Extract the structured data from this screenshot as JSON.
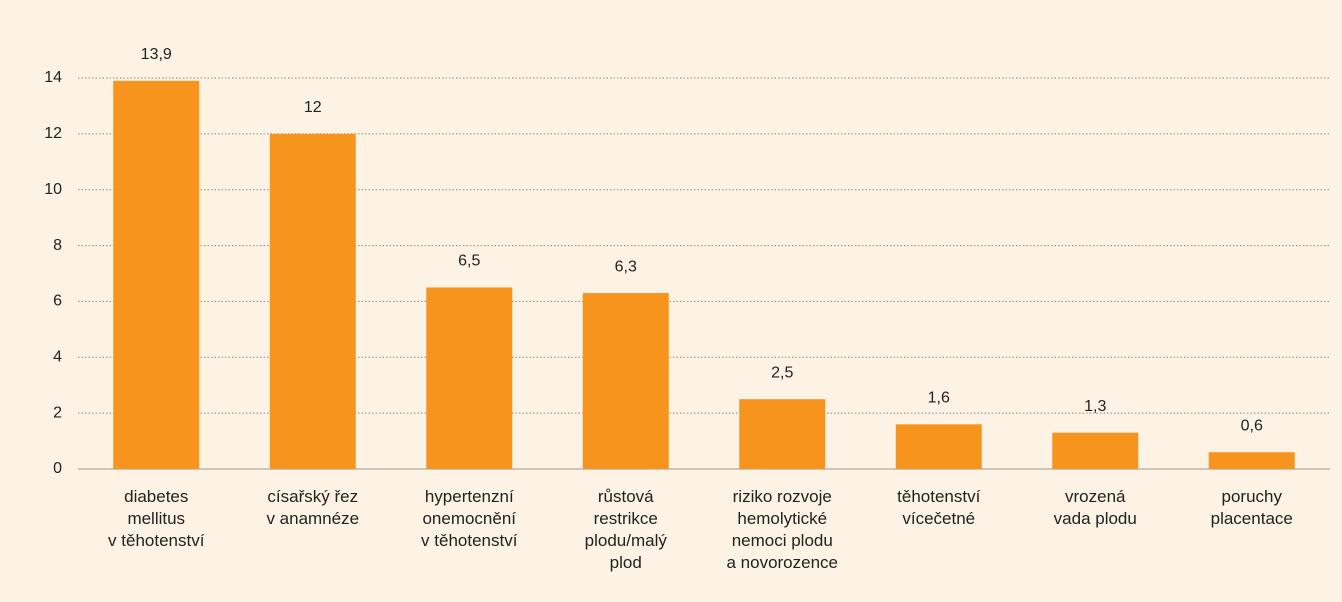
{
  "chart_data": {
    "type": "bar",
    "categories": [
      "diabetes\nmellitus\nv těhotenství",
      "císařský řez\nv anamnéze",
      "hypertenzní\nonemocnění\nv těhotenství",
      "růstová\nrestrikce\nplodu/malý\nplod",
      "riziko rozvoje\nhemolytické\nnemoci plodu\na novorozence",
      "těhotenství\nvícečetné",
      "vrozená\nvada plodu",
      "poruchy\nplacentace"
    ],
    "values": [
      13.9,
      12,
      6.5,
      6.3,
      2.5,
      1.6,
      1.3,
      0.6
    ],
    "value_labels": [
      "13,9",
      "12",
      "6,5",
      "6,3",
      "2,5",
      "1,6",
      "1,3",
      "0,6"
    ],
    "color": "#f7941d",
    "ylim": [
      0,
      14
    ],
    "yticks": [
      0,
      2,
      4,
      6,
      8,
      10,
      12,
      14
    ],
    "grid": true
  }
}
